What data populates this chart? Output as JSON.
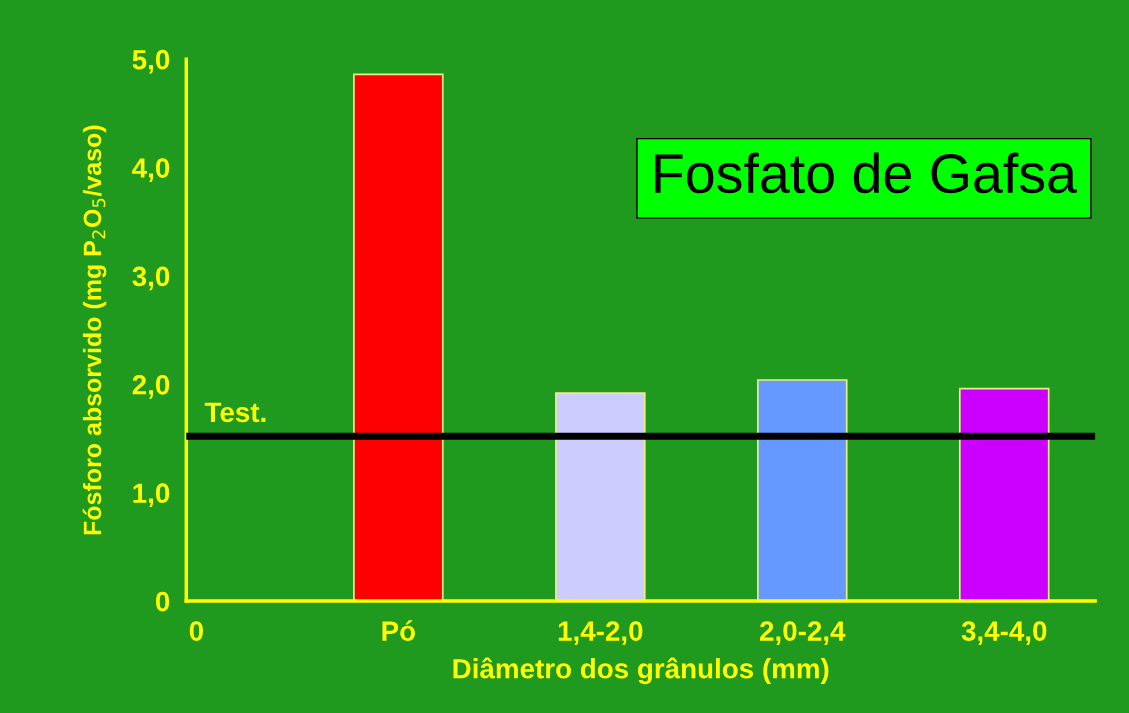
{
  "chart_data": {
    "type": "bar",
    "xlabel": "Diâmetro dos grânulos (mm)",
    "ylabel": "Fósforo absorvido (mg P$_{2}$O$_{5}$/vaso)",
    "categories": [
      "0",
      "Pó",
      "1,4-2,0",
      "2,0-2,4",
      "3,4-4,0"
    ],
    "values": [
      null,
      4.86,
      1.92,
      2.04,
      1.96
    ],
    "colors": [
      "#ff0000",
      "#ff0000",
      "#ccccff",
      "#6699ff",
      "#cc00ff"
    ],
    "ylim": [
      0,
      5
    ],
    "yticks": [
      0,
      {
        "value": 1,
        "label": "1,0"
      },
      {
        "value": 2,
        "label": "2,0"
      },
      {
        "value": 3,
        "label": "3,0"
      },
      {
        "value": 4,
        "label": "4,0"
      },
      {
        "value": 5,
        "label": "5,0"
      }
    ],
    "ref_lines": [
      {
        "axis": "y",
        "value": 1.52,
        "label": "Test.",
        "color": "#000000"
      }
    ],
    "annotations": [
      "Fosfato de Gafsa"
    ],
    "grid": false,
    "legend": false
  }
}
